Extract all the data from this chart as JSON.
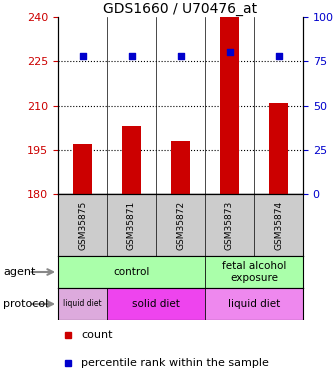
{
  "title": "GDS1660 / U70476_at",
  "samples": [
    "GSM35875",
    "GSM35871",
    "GSM35872",
    "GSM35873",
    "GSM35874"
  ],
  "bar_values": [
    197,
    203,
    198,
    240,
    211
  ],
  "bar_base": 180,
  "percentile_values": [
    78,
    78,
    78,
    80,
    78
  ],
  "ylim": [
    180,
    240
  ],
  "yticks": [
    180,
    195,
    210,
    225,
    240
  ],
  "yticks_right": [
    0,
    25,
    50,
    75,
    100
  ],
  "bar_color": "#cc0000",
  "percentile_color": "#0000cc",
  "dotted_line_values": [
    195,
    210,
    225
  ],
  "agent_groups": [
    {
      "label": "control",
      "start": 0,
      "end": 3,
      "color": "#aaffaa"
    },
    {
      "label": "fetal alcohol\nexposure",
      "start": 3,
      "end": 5,
      "color": "#aaffaa"
    }
  ],
  "protocol_groups": [
    {
      "label": "liquid diet",
      "start": 0,
      "end": 1,
      "color": "#ddaadd"
    },
    {
      "label": "solid diet",
      "start": 1,
      "end": 3,
      "color": "#ee44ee"
    },
    {
      "label": "liquid diet",
      "start": 3,
      "end": 5,
      "color": "#ee88ee"
    }
  ],
  "legend_count_label": "count",
  "legend_pct_label": "percentile rank within the sample",
  "left_label_agent": "agent",
  "left_label_protocol": "protocol",
  "sample_bg": "#cccccc"
}
